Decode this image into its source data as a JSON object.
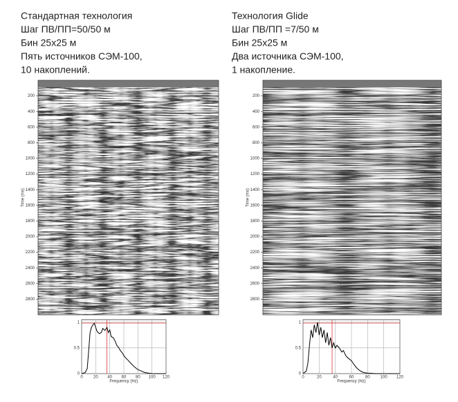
{
  "panels": [
    {
      "lines": [
        "Стандартная технология",
        "Шаг ПВ/ПП=50/50 м",
        "Бин 25x25 м",
        "Пять источников СЭМ-100,",
        "10 накоплений."
      ],
      "section": {
        "ylabel": "Time (ms)",
        "ylim": [
          0,
          3000
        ],
        "yticks": [
          200,
          400,
          600,
          800,
          1000,
          1200,
          1400,
          1600,
          1800,
          2000,
          2200,
          2400,
          2600,
          2800
        ]
      },
      "spectrum": {
        "xlabel": "Frequency (Hz)",
        "xlim": [
          0,
          120
        ],
        "ylim": [
          0,
          1.05
        ],
        "xticks": [
          0,
          20,
          40,
          60,
          80,
          100,
          120
        ],
        "yticks": [
          0,
          0.5,
          1
        ],
        "x": [
          0,
          5,
          8,
          10,
          12,
          14,
          16,
          18,
          20,
          22,
          25,
          28,
          30,
          33,
          36,
          38,
          40,
          42,
          45,
          48,
          50,
          53,
          55,
          58,
          60,
          63,
          66,
          70,
          75,
          80,
          85,
          90,
          95,
          100,
          110,
          120
        ],
        "values": [
          0,
          0.02,
          0.1,
          0.45,
          0.8,
          0.9,
          0.95,
          0.98,
          0.9,
          0.82,
          0.78,
          0.8,
          0.88,
          0.84,
          0.9,
          0.8,
          0.85,
          0.72,
          0.7,
          0.62,
          0.55,
          0.5,
          0.45,
          0.4,
          0.35,
          0.3,
          0.26,
          0.2,
          0.13,
          0.08,
          0.05,
          0.02,
          0.01,
          0,
          0,
          0
        ]
      }
    },
    {
      "lines": [
        "Технология Glide",
        "Шаг ПВ/ПП =7/50 м",
        "Бин 25x25 м",
        "Два источника СЭМ-100,",
        "1 накопление."
      ],
      "section": {
        "ylabel": "Time (ms)",
        "ylim": [
          0,
          3000
        ],
        "yticks": [
          200,
          400,
          600,
          800,
          1000,
          1200,
          1400,
          1600,
          1800,
          2000,
          2200,
          2400,
          2600,
          2800
        ]
      },
      "spectrum": {
        "xlabel": "Frequency (Hz)",
        "xlim": [
          0,
          120
        ],
        "ylim": [
          0,
          1.05
        ],
        "xticks": [
          0,
          20,
          40,
          60,
          80,
          100,
          120
        ],
        "yticks": [
          0,
          0.5,
          1
        ],
        "x": [
          0,
          4,
          6,
          8,
          10,
          12,
          14,
          16,
          18,
          20,
          22,
          24,
          26,
          28,
          30,
          32,
          34,
          36,
          38,
          40,
          42,
          45,
          48,
          50,
          53,
          56,
          60,
          63,
          66,
          70,
          75,
          80,
          90,
          100,
          120
        ],
        "values": [
          0,
          0.05,
          0.2,
          0.55,
          0.85,
          0.7,
          0.95,
          0.8,
          1.0,
          0.75,
          0.9,
          0.7,
          0.85,
          0.6,
          0.8,
          0.55,
          0.7,
          0.5,
          0.6,
          0.5,
          0.55,
          0.5,
          0.42,
          0.45,
          0.35,
          0.3,
          0.25,
          0.18,
          0.12,
          0.06,
          0.02,
          0.01,
          0,
          0,
          0
        ]
      }
    }
  ]
}
